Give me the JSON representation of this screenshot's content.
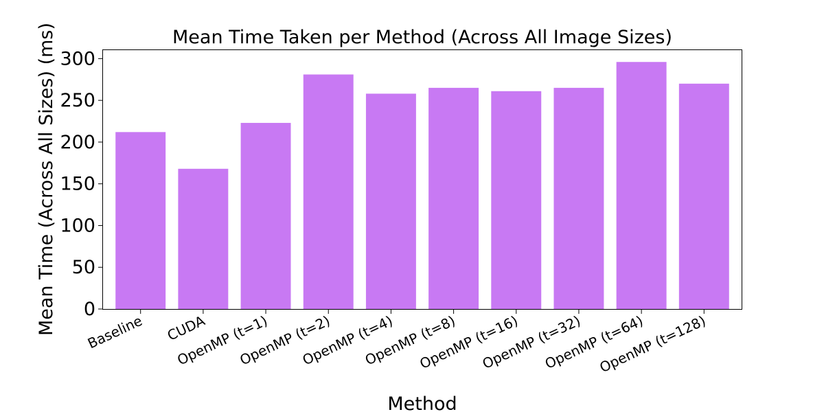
{
  "chart_data": {
    "type": "bar",
    "title": "Mean Time Taken per Method (Across All Image Sizes)",
    "xlabel": "Method",
    "ylabel": "Mean Time (Across All Sizes) (ms)",
    "categories": [
      "Baseline",
      "CUDA",
      "OpenMP (t=1)",
      "OpenMP (t=2)",
      "OpenMP (t=4)",
      "OpenMP (t=8)",
      "OpenMP (t=16)",
      "OpenMP (t=32)",
      "OpenMP (t=64)",
      "OpenMP (t=128)"
    ],
    "values": [
      212,
      168,
      223,
      281,
      258,
      265,
      261,
      265,
      296,
      270
    ],
    "ylim": [
      0,
      311
    ],
    "yticks": [
      0,
      50,
      100,
      150,
      200,
      250,
      300
    ],
    "bar_color": "#c879f3",
    "grid": false
  }
}
